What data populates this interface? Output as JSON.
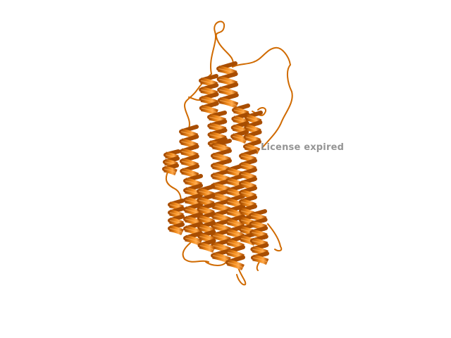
{
  "viewer": {
    "watermark_text": "License expired",
    "background_color": "#ffffff",
    "ribbon_color": "#e87400",
    "ribbon_dark": "#a84d00",
    "ribbon_light": "#ff9a2e",
    "style": "cartoon"
  }
}
